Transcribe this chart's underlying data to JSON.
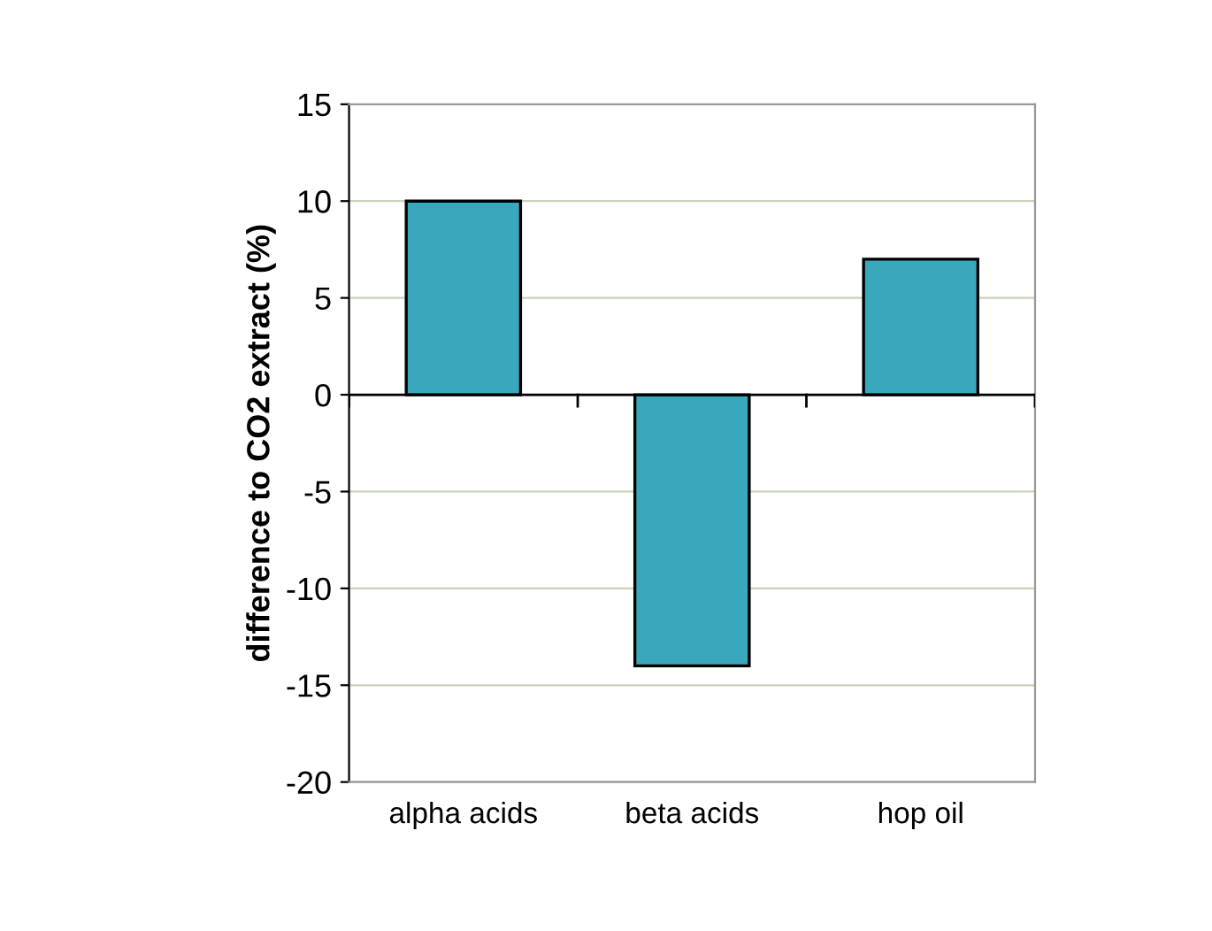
{
  "chart_data": {
    "type": "bar",
    "ylabel": "difference to CO2 extract (%)",
    "categories": [
      "alpha acids",
      "beta acids",
      "hop oil"
    ],
    "values": [
      10,
      -14,
      7
    ],
    "color": "#3aa8bc",
    "ylim": [
      -20,
      15
    ],
    "yticks": [
      -20,
      -15,
      -10,
      -5,
      0,
      5,
      10,
      15
    ],
    "grid": "y"
  }
}
